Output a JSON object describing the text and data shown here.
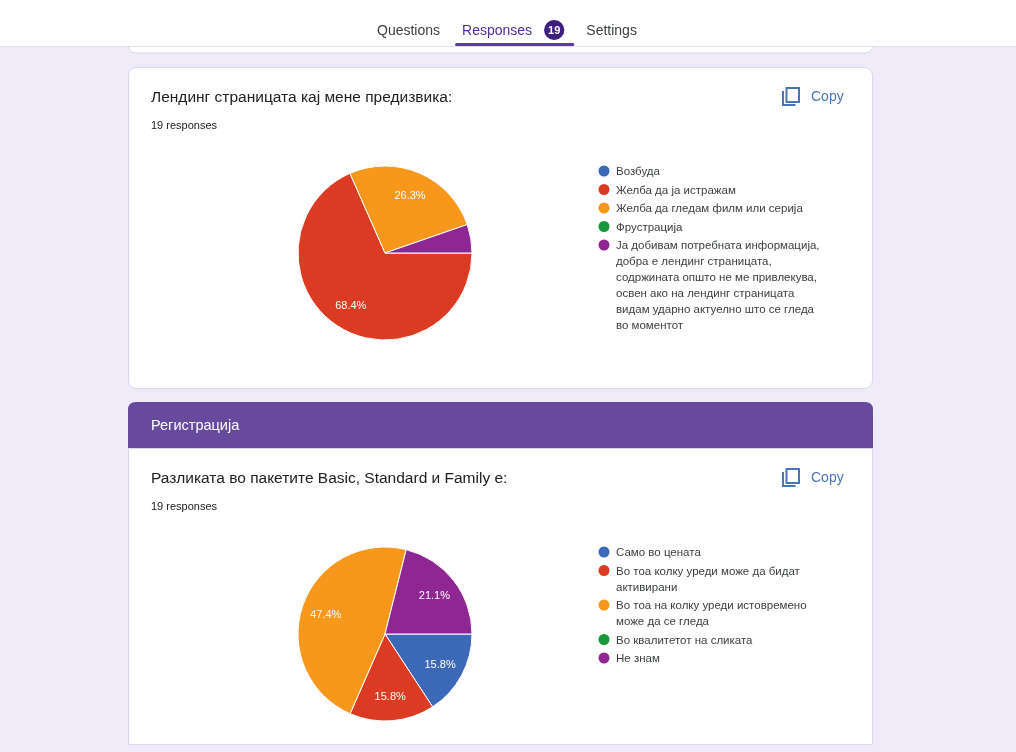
{
  "chart_data": [
    {
      "type": "other",
      "annotations": [
        "Questions",
        "Responses",
        "19",
        "Settings"
      ]
    },
    {
      "type": "pie",
      "title": "Лендинг страницата кај мене предизвика:",
      "subtitle": "19 responses",
      "annotations": [
        "Copy"
      ],
      "categories": [
        "Возбуда",
        "Желба да ја истражам",
        "Желба да гледам филм или серија",
        "Фрустрација",
        "Ја добивам потребната информација, добра е лендинг страницата, содржината општо не ме привлекува, освен ако на лендинг страницата видам ударно актуелно што се гледа во моментот"
      ],
      "values": [
        0,
        68.4,
        26.3,
        0,
        5.3
      ],
      "colors": [
        "#3c68b8",
        "#db3b22",
        "#f7981c",
        "#17963a",
        "#8e2792"
      ],
      "value_labels": [
        null,
        "68.4%",
        "26.3%",
        null,
        null
      ],
      "legend": "right"
    },
    {
      "type": "other",
      "title": "Регистрација"
    },
    {
      "type": "pie",
      "title": "Разликата во пакетите Basic, Standard и Family е:",
      "subtitle": "19 responses",
      "annotations": [
        "Copy"
      ],
      "categories": [
        "Само во цената",
        "Во тоа колку уреди може да бидат активирани",
        "Во тоа на колку уреди истовремено може да се гледа",
        "Во квалитетот на сликата",
        "Не знам"
      ],
      "values": [
        15.8,
        15.8,
        47.4,
        0,
        21.1
      ],
      "colors": [
        "#3c68b8",
        "#db3b22",
        "#f7981c",
        "#17963a",
        "#8e2792"
      ],
      "value_labels": [
        "15.8%",
        "15.8%",
        "47.4%",
        null,
        "21.1%"
      ],
      "legend": "right"
    }
  ]
}
